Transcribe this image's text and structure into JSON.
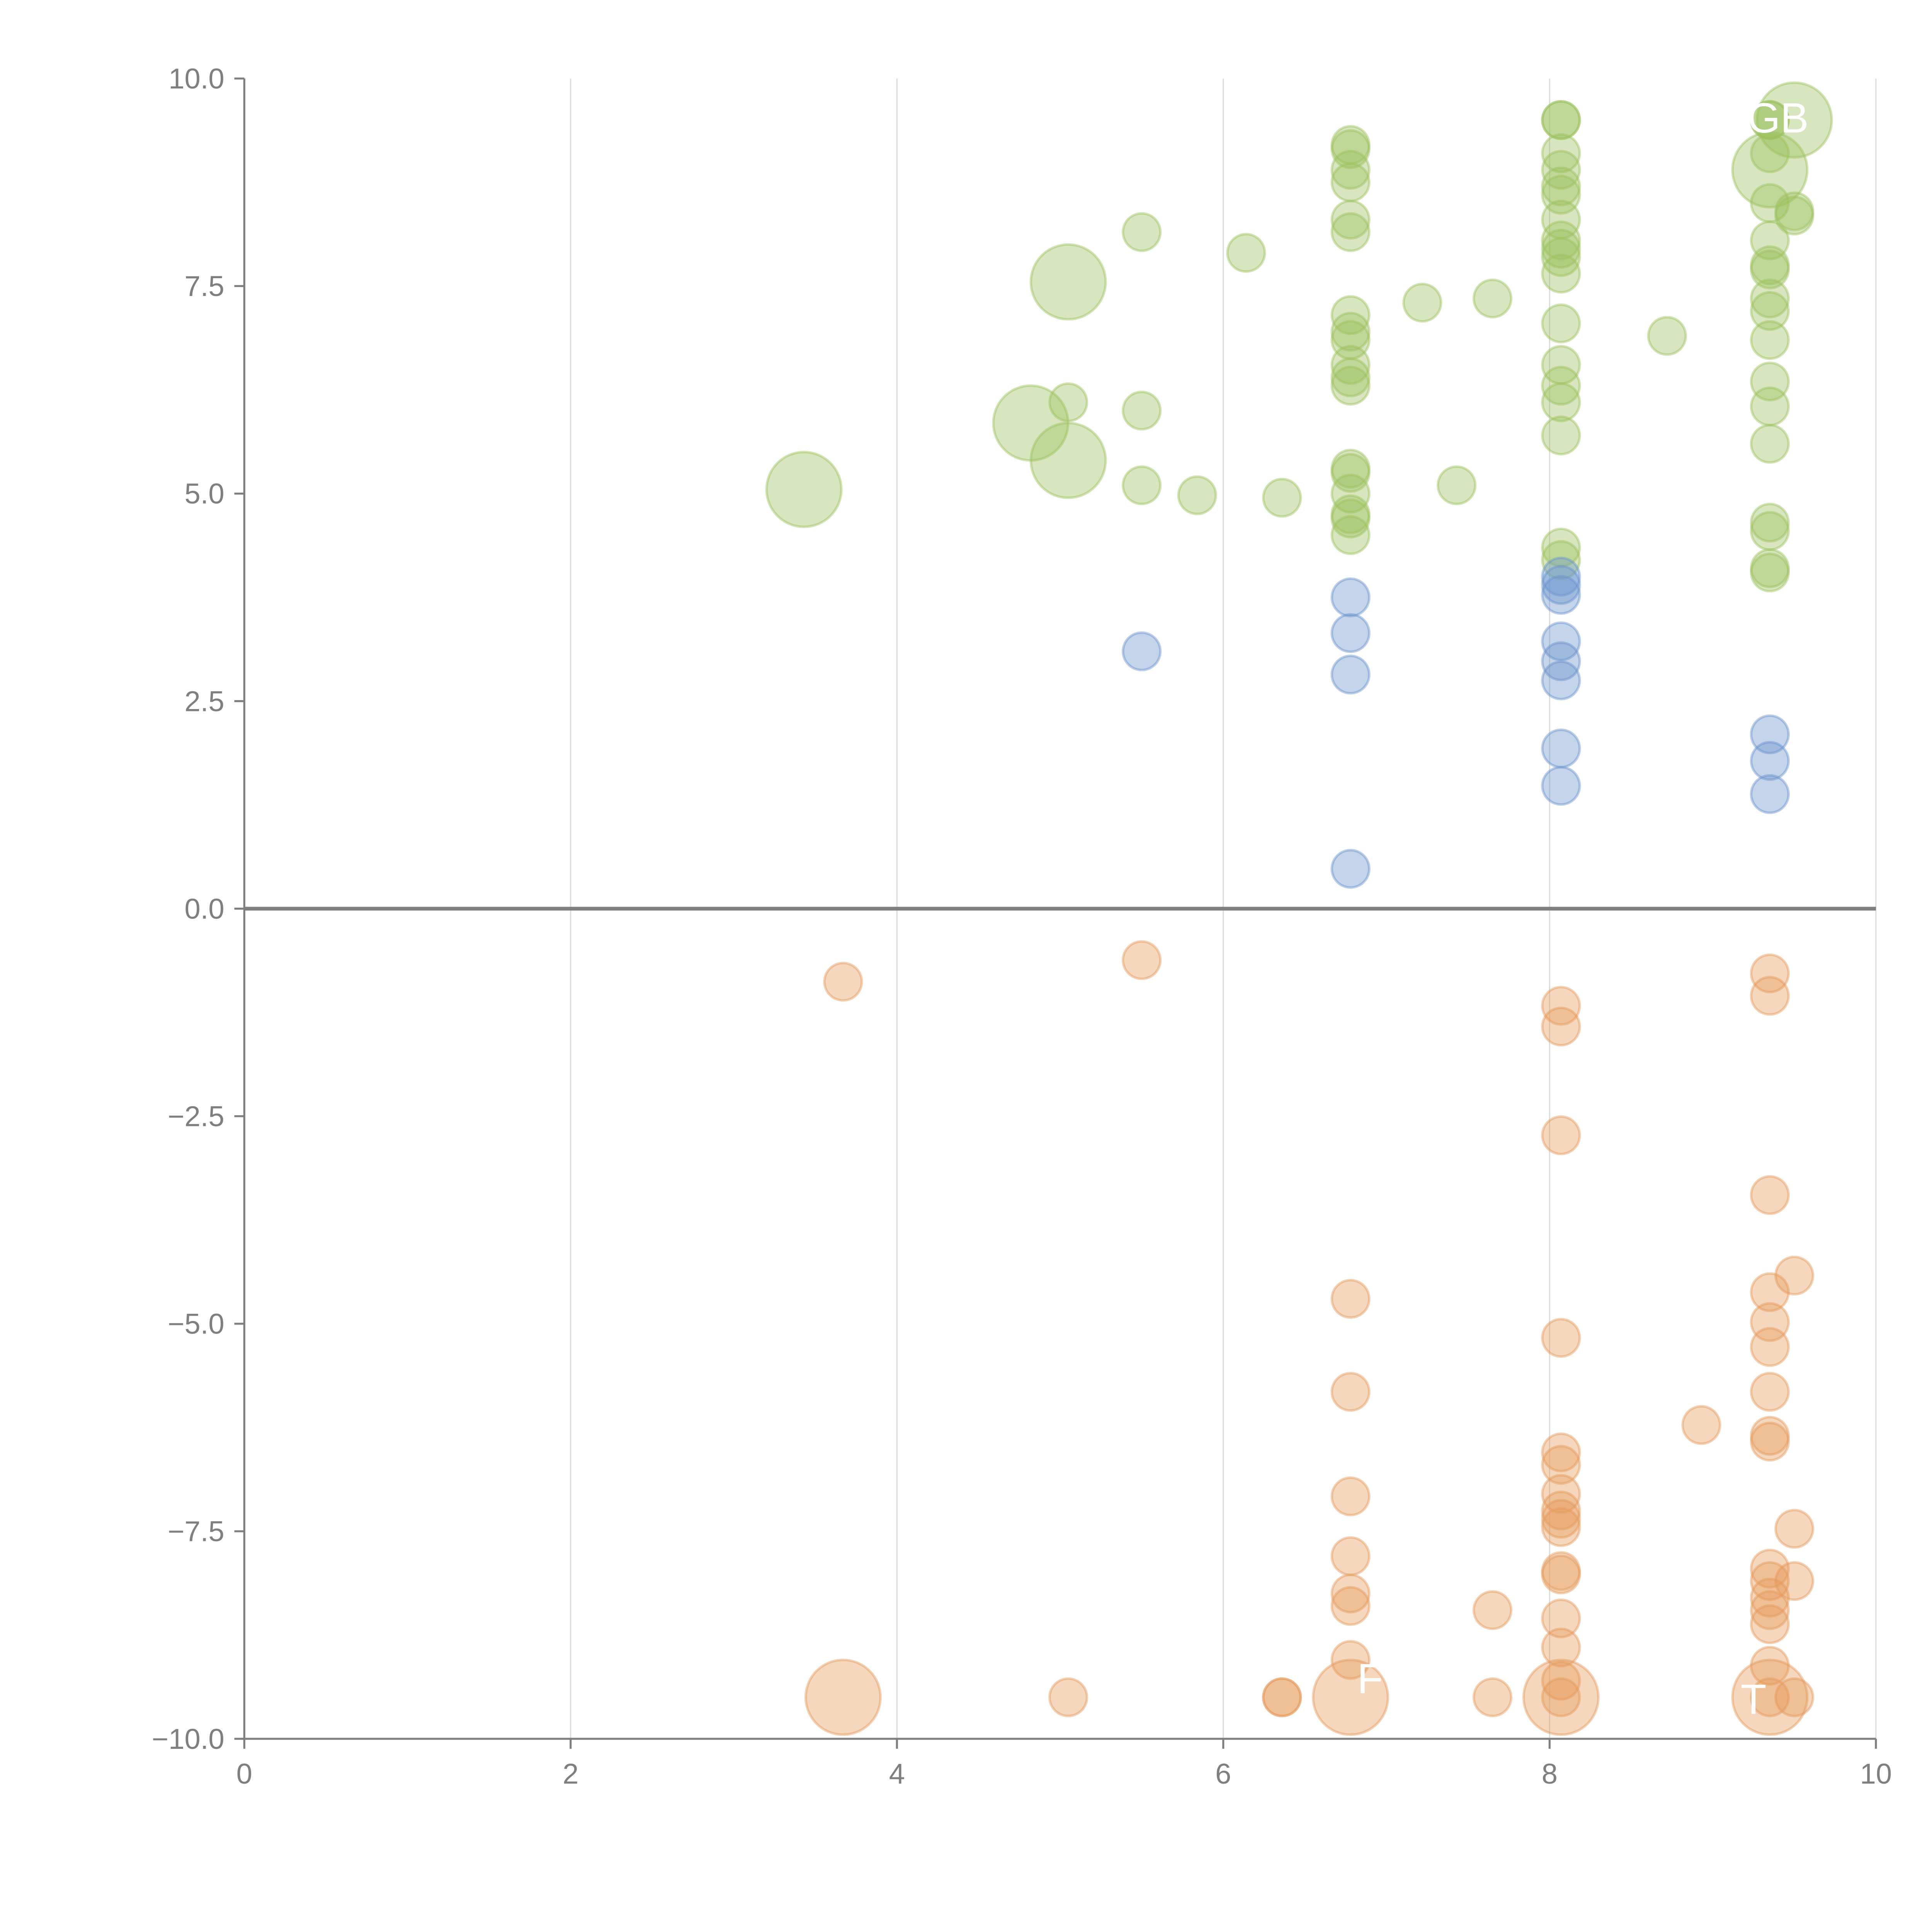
{
  "chart_data": {
    "type": "scatter",
    "subtype": "bubble",
    "title": "",
    "xlabel": "",
    "ylabel": "",
    "xlim": [
      0,
      10
    ],
    "ylim": [
      -10,
      10
    ],
    "x_ticks": [
      "0",
      "2",
      "4",
      "6",
      "8",
      "10"
    ],
    "y_ticks": [
      "10.0",
      "7.5",
      "5.0",
      "2.5",
      "0.0",
      "−2.5",
      "−5.0",
      "−7.5",
      "−10.0"
    ],
    "x_tick_values": [
      0,
      2,
      4,
      6,
      8,
      10
    ],
    "y_tick_values": [
      10,
      7.5,
      5,
      2.5,
      0,
      -2.5,
      -5,
      -7.5,
      -10
    ],
    "grid": "vertical",
    "zero_line": true,
    "legend": "none",
    "colors": {
      "green": "#9bc05d",
      "blue": "#6a93cc",
      "orange": "#e59a5a"
    },
    "series": [
      {
        "name": "green",
        "color": "#9bc05d",
        "points": [
          {
            "x": 3.43,
            "y": 5.05,
            "s": 2
          },
          {
            "x": 4.82,
            "y": 5.85,
            "s": 2
          },
          {
            "x": 5.05,
            "y": 7.55,
            "s": 2
          },
          {
            "x": 5.05,
            "y": 5.4,
            "s": 2
          },
          {
            "x": 5.05,
            "y": 6.1,
            "s": 1
          },
          {
            "x": 5.5,
            "y": 8.15,
            "s": 1
          },
          {
            "x": 5.5,
            "y": 6.0,
            "s": 1
          },
          {
            "x": 5.5,
            "y": 5.1,
            "s": 1
          },
          {
            "x": 5.84,
            "y": 4.98,
            "s": 1
          },
          {
            "x": 6.14,
            "y": 7.9,
            "s": 1
          },
          {
            "x": 6.36,
            "y": 4.95,
            "s": 1
          },
          {
            "x": 6.78,
            "y": 9.2,
            "s": 1
          },
          {
            "x": 6.78,
            "y": 9.15,
            "s": 1
          },
          {
            "x": 6.78,
            "y": 8.9,
            "s": 1
          },
          {
            "x": 6.78,
            "y": 8.75,
            "s": 1
          },
          {
            "x": 6.78,
            "y": 8.3,
            "s": 1
          },
          {
            "x": 6.78,
            "y": 8.15,
            "s": 1
          },
          {
            "x": 6.78,
            "y": 7.15,
            "s": 1
          },
          {
            "x": 6.78,
            "y": 6.95,
            "s": 1
          },
          {
            "x": 6.78,
            "y": 6.85,
            "s": 1
          },
          {
            "x": 6.78,
            "y": 6.55,
            "s": 1
          },
          {
            "x": 6.78,
            "y": 6.4,
            "s": 1
          },
          {
            "x": 6.78,
            "y": 6.3,
            "s": 1
          },
          {
            "x": 6.78,
            "y": 5.3,
            "s": 1
          },
          {
            "x": 6.78,
            "y": 5.25,
            "s": 1
          },
          {
            "x": 6.78,
            "y": 5.0,
            "s": 1
          },
          {
            "x": 6.78,
            "y": 4.75,
            "s": 1
          },
          {
            "x": 6.78,
            "y": 4.7,
            "s": 1
          },
          {
            "x": 6.78,
            "y": 4.5,
            "s": 1
          },
          {
            "x": 7.22,
            "y": 7.3,
            "s": 1
          },
          {
            "x": 7.43,
            "y": 5.1,
            "s": 1
          },
          {
            "x": 7.65,
            "y": 7.35,
            "s": 1
          },
          {
            "x": 8.07,
            "y": 9.5,
            "s": 1
          },
          {
            "x": 8.07,
            "y": 9.5,
            "s": 1
          },
          {
            "x": 8.07,
            "y": 9.1,
            "s": 1
          },
          {
            "x": 8.07,
            "y": 8.9,
            "s": 1
          },
          {
            "x": 8.07,
            "y": 8.7,
            "s": 1
          },
          {
            "x": 8.07,
            "y": 8.6,
            "s": 1
          },
          {
            "x": 8.07,
            "y": 8.3,
            "s": 1
          },
          {
            "x": 8.07,
            "y": 8.05,
            "s": 1
          },
          {
            "x": 8.07,
            "y": 7.95,
            "s": 1
          },
          {
            "x": 8.07,
            "y": 7.85,
            "s": 1
          },
          {
            "x": 8.07,
            "y": 7.65,
            "s": 1
          },
          {
            "x": 8.07,
            "y": 7.05,
            "s": 1
          },
          {
            "x": 8.07,
            "y": 6.55,
            "s": 1
          },
          {
            "x": 8.07,
            "y": 6.3,
            "s": 1
          },
          {
            "x": 8.07,
            "y": 6.1,
            "s": 1
          },
          {
            "x": 8.07,
            "y": 5.7,
            "s": 1
          },
          {
            "x": 8.07,
            "y": 4.35,
            "s": 1
          },
          {
            "x": 8.07,
            "y": 4.2,
            "s": 1
          },
          {
            "x": 8.72,
            "y": 6.9,
            "s": 1
          },
          {
            "x": 9.35,
            "y": 9.5,
            "s": 1
          },
          {
            "x": 9.35,
            "y": 9.5,
            "s": 1
          },
          {
            "x": 9.35,
            "y": 9.1,
            "s": 1
          },
          {
            "x": 9.35,
            "y": 8.9,
            "s": 2
          },
          {
            "x": 9.35,
            "y": 8.5,
            "s": 1
          },
          {
            "x": 9.35,
            "y": 8.05,
            "s": 1
          },
          {
            "x": 9.35,
            "y": 7.75,
            "s": 1
          },
          {
            "x": 9.35,
            "y": 7.7,
            "s": 1
          },
          {
            "x": 9.35,
            "y": 7.35,
            "s": 1
          },
          {
            "x": 9.35,
            "y": 7.2,
            "s": 1
          },
          {
            "x": 9.35,
            "y": 6.85,
            "s": 1
          },
          {
            "x": 9.35,
            "y": 6.35,
            "s": 1
          },
          {
            "x": 9.35,
            "y": 6.05,
            "s": 1
          },
          {
            "x": 9.35,
            "y": 5.6,
            "s": 1
          },
          {
            "x": 9.35,
            "y": 4.65,
            "s": 1
          },
          {
            "x": 9.35,
            "y": 4.55,
            "s": 1
          },
          {
            "x": 9.35,
            "y": 4.1,
            "s": 1
          },
          {
            "x": 9.35,
            "y": 4.05,
            "s": 1
          },
          {
            "x": 9.5,
            "y": 9.5,
            "s": 2
          },
          {
            "x": 9.5,
            "y": 8.4,
            "s": 1
          },
          {
            "x": 9.5,
            "y": 8.35,
            "s": 1
          }
        ]
      },
      {
        "name": "blue",
        "color": "#6a93cc",
        "points": [
          {
            "x": 5.5,
            "y": 3.1,
            "s": 1
          },
          {
            "x": 6.78,
            "y": 3.75,
            "s": 1
          },
          {
            "x": 6.78,
            "y": 3.32,
            "s": 1
          },
          {
            "x": 6.78,
            "y": 2.82,
            "s": 1
          },
          {
            "x": 6.78,
            "y": 0.48,
            "s": 1
          },
          {
            "x": 8.07,
            "y": 4.0,
            "s": 1
          },
          {
            "x": 8.07,
            "y": 3.9,
            "s": 1
          },
          {
            "x": 8.07,
            "y": 3.78,
            "s": 1
          },
          {
            "x": 8.07,
            "y": 3.22,
            "s": 1
          },
          {
            "x": 8.07,
            "y": 2.98,
            "s": 1
          },
          {
            "x": 8.07,
            "y": 2.75,
            "s": 1
          },
          {
            "x": 8.07,
            "y": 1.93,
            "s": 1
          },
          {
            "x": 8.07,
            "y": 1.48,
            "s": 1
          },
          {
            "x": 9.35,
            "y": 2.1,
            "s": 1
          },
          {
            "x": 9.35,
            "y": 1.78,
            "s": 1
          },
          {
            "x": 9.35,
            "y": 1.38,
            "s": 1
          }
        ]
      },
      {
        "name": "orange",
        "color": "#e59a5a",
        "points": [
          {
            "x": 3.67,
            "y": -0.88,
            "s": 1
          },
          {
            "x": 3.67,
            "y": -9.5,
            "s": 2
          },
          {
            "x": 5.05,
            "y": -9.5,
            "s": 1
          },
          {
            "x": 5.5,
            "y": -0.62,
            "s": 1
          },
          {
            "x": 6.36,
            "y": -9.5,
            "s": 1
          },
          {
            "x": 6.36,
            "y": -9.5,
            "s": 1
          },
          {
            "x": 6.78,
            "y": -4.7,
            "s": 1
          },
          {
            "x": 6.78,
            "y": -5.82,
            "s": 1
          },
          {
            "x": 6.78,
            "y": -7.08,
            "s": 1
          },
          {
            "x": 6.78,
            "y": -7.8,
            "s": 1
          },
          {
            "x": 6.78,
            "y": -8.25,
            "s": 1
          },
          {
            "x": 6.78,
            "y": -8.4,
            "s": 1
          },
          {
            "x": 6.78,
            "y": -9.05,
            "s": 1
          },
          {
            "x": 6.78,
            "y": -9.5,
            "s": 2
          },
          {
            "x": 7.65,
            "y": -8.45,
            "s": 1
          },
          {
            "x": 7.65,
            "y": -9.5,
            "s": 1
          },
          {
            "x": 8.07,
            "y": -1.17,
            "s": 1
          },
          {
            "x": 8.07,
            "y": -1.42,
            "s": 1
          },
          {
            "x": 8.07,
            "y": -2.73,
            "s": 1
          },
          {
            "x": 8.07,
            "y": -5.17,
            "s": 1
          },
          {
            "x": 8.07,
            "y": -6.55,
            "s": 1
          },
          {
            "x": 8.07,
            "y": -6.7,
            "s": 1
          },
          {
            "x": 8.07,
            "y": -7.05,
            "s": 1
          },
          {
            "x": 8.07,
            "y": -7.25,
            "s": 1
          },
          {
            "x": 8.07,
            "y": -7.35,
            "s": 1
          },
          {
            "x": 8.07,
            "y": -7.45,
            "s": 1
          },
          {
            "x": 8.07,
            "y": -7.98,
            "s": 1
          },
          {
            "x": 8.07,
            "y": -8.02,
            "s": 1
          },
          {
            "x": 8.07,
            "y": -8.55,
            "s": 1
          },
          {
            "x": 8.07,
            "y": -8.9,
            "s": 1
          },
          {
            "x": 8.07,
            "y": -9.3,
            "s": 1
          },
          {
            "x": 8.07,
            "y": -9.5,
            "s": 1
          },
          {
            "x": 8.07,
            "y": -9.5,
            "s": 2
          },
          {
            "x": 8.93,
            "y": -6.22,
            "s": 1
          },
          {
            "x": 9.35,
            "y": -0.78,
            "s": 1
          },
          {
            "x": 9.35,
            "y": -1.05,
            "s": 1
          },
          {
            "x": 9.35,
            "y": -3.45,
            "s": 1
          },
          {
            "x": 9.35,
            "y": -4.62,
            "s": 1
          },
          {
            "x": 9.35,
            "y": -4.98,
            "s": 1
          },
          {
            "x": 9.35,
            "y": -5.28,
            "s": 1
          },
          {
            "x": 9.35,
            "y": -5.82,
            "s": 1
          },
          {
            "x": 9.35,
            "y": -6.35,
            "s": 1
          },
          {
            "x": 9.35,
            "y": -6.42,
            "s": 1
          },
          {
            "x": 9.35,
            "y": -7.95,
            "s": 1
          },
          {
            "x": 9.35,
            "y": -8.1,
            "s": 1
          },
          {
            "x": 9.35,
            "y": -8.3,
            "s": 1
          },
          {
            "x": 9.35,
            "y": -8.45,
            "s": 1
          },
          {
            "x": 9.35,
            "y": -8.62,
            "s": 1
          },
          {
            "x": 9.35,
            "y": -9.12,
            "s": 1
          },
          {
            "x": 9.35,
            "y": -9.5,
            "s": 1
          },
          {
            "x": 9.35,
            "y": -9.5,
            "s": 2
          },
          {
            "x": 9.5,
            "y": -4.42,
            "s": 1
          },
          {
            "x": 9.5,
            "y": -7.47,
            "s": 1
          },
          {
            "x": 9.5,
            "y": -8.1,
            "s": 1
          },
          {
            "x": 9.5,
            "y": -9.5,
            "s": 1
          }
        ]
      }
    ],
    "annotations": [
      {
        "text": "GB",
        "x": 9.4,
        "y": 9.5,
        "color": "#ffffff"
      },
      {
        "text": "F",
        "x": 6.9,
        "y": -9.3,
        "color": "#ffffff"
      },
      {
        "text": "T",
        "x": 9.25,
        "y": -9.55,
        "color": "#ffffff"
      }
    ]
  }
}
